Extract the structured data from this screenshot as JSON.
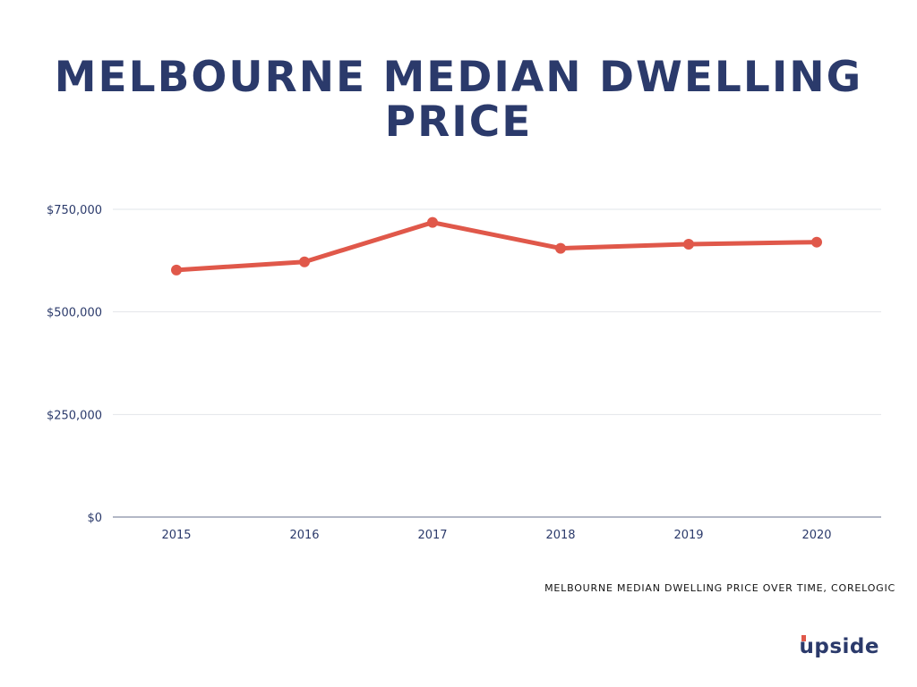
{
  "title": {
    "line1": "MELBOURNE MEDIAN DWELLING",
    "line2": "PRICE"
  },
  "caption": "MELBOURNE MEDIAN DWELLING PRICE OVER TIME, CORELOGIC",
  "logo": {
    "first_letter": "u",
    "rest": "pside"
  },
  "colors": {
    "title": "#2b3a6b",
    "line": "#e0584a",
    "grid": "#e2e4ea",
    "axis": "#9aa0b4",
    "logo_accent": "#e0584a"
  },
  "chart_data": {
    "type": "line",
    "title": "MELBOURNE MEDIAN DWELLING PRICE",
    "xlabel": "",
    "ylabel": "",
    "categories": [
      "2015",
      "2016",
      "2017",
      "2018",
      "2019",
      "2020"
    ],
    "series": [
      {
        "values": [
          602000,
          622000,
          718000,
          655000,
          665000,
          670000
        ]
      }
    ],
    "ylim": [
      0,
      750000
    ],
    "yticks": [
      0,
      250000,
      500000,
      750000
    ],
    "ytick_labels": [
      "$0",
      "$250,000",
      "$500,000",
      "$750,000"
    ],
    "grid": true,
    "legend": "none"
  }
}
